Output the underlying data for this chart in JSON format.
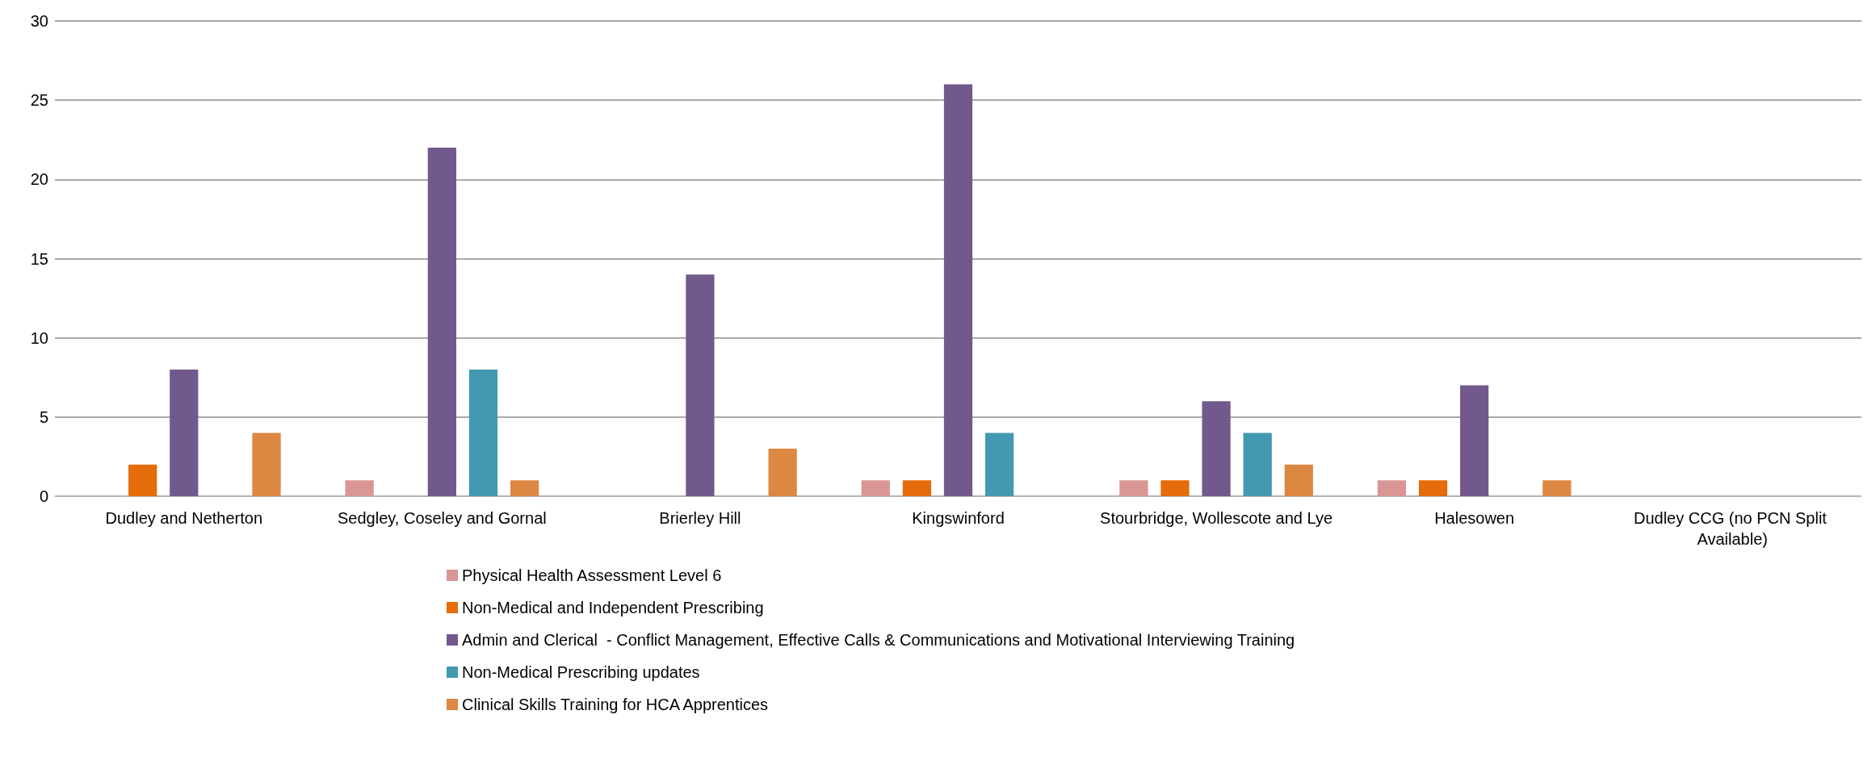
{
  "chart_data": {
    "type": "bar",
    "categories": [
      "Dudley and Netherton",
      "Sedgley, Coseley and Gornal",
      "Brierley Hill",
      "Kingswinford",
      "Stourbridge, Wollescote and Lye",
      "Halesowen",
      "Dudley CCG (no PCN Split Available)"
    ],
    "series": [
      {
        "name": "Physical Health Assessment Level 6",
        "color": "#d99694",
        "values": [
          0,
          1,
          0,
          1,
          1,
          1,
          0
        ]
      },
      {
        "name": "Non-Medical and Independent Prescribing",
        "color": "#e46c0a",
        "values": [
          2,
          0,
          0,
          1,
          1,
          1,
          0
        ]
      },
      {
        "name": "Admin and Clerical  - Conflict Management, Effective Calls & Communications and Motivational Interviewing Training",
        "color": "#72598d",
        "values": [
          8,
          22,
          14,
          26,
          6,
          7,
          0
        ]
      },
      {
        "name": "Non-Medical Prescribing updates",
        "color": "#4299b0",
        "values": [
          0,
          8,
          0,
          4,
          4,
          0,
          0
        ]
      },
      {
        "name": "Clinical Skills Training for HCA Apprentices",
        "color": "#dc8742",
        "values": [
          4,
          1,
          3,
          0,
          2,
          1,
          0
        ]
      }
    ],
    "ylim": [
      0,
      30
    ],
    "yticks": [
      0,
      5,
      10,
      15,
      20,
      25,
      30
    ],
    "grid": "y",
    "legend": "bottom"
  }
}
